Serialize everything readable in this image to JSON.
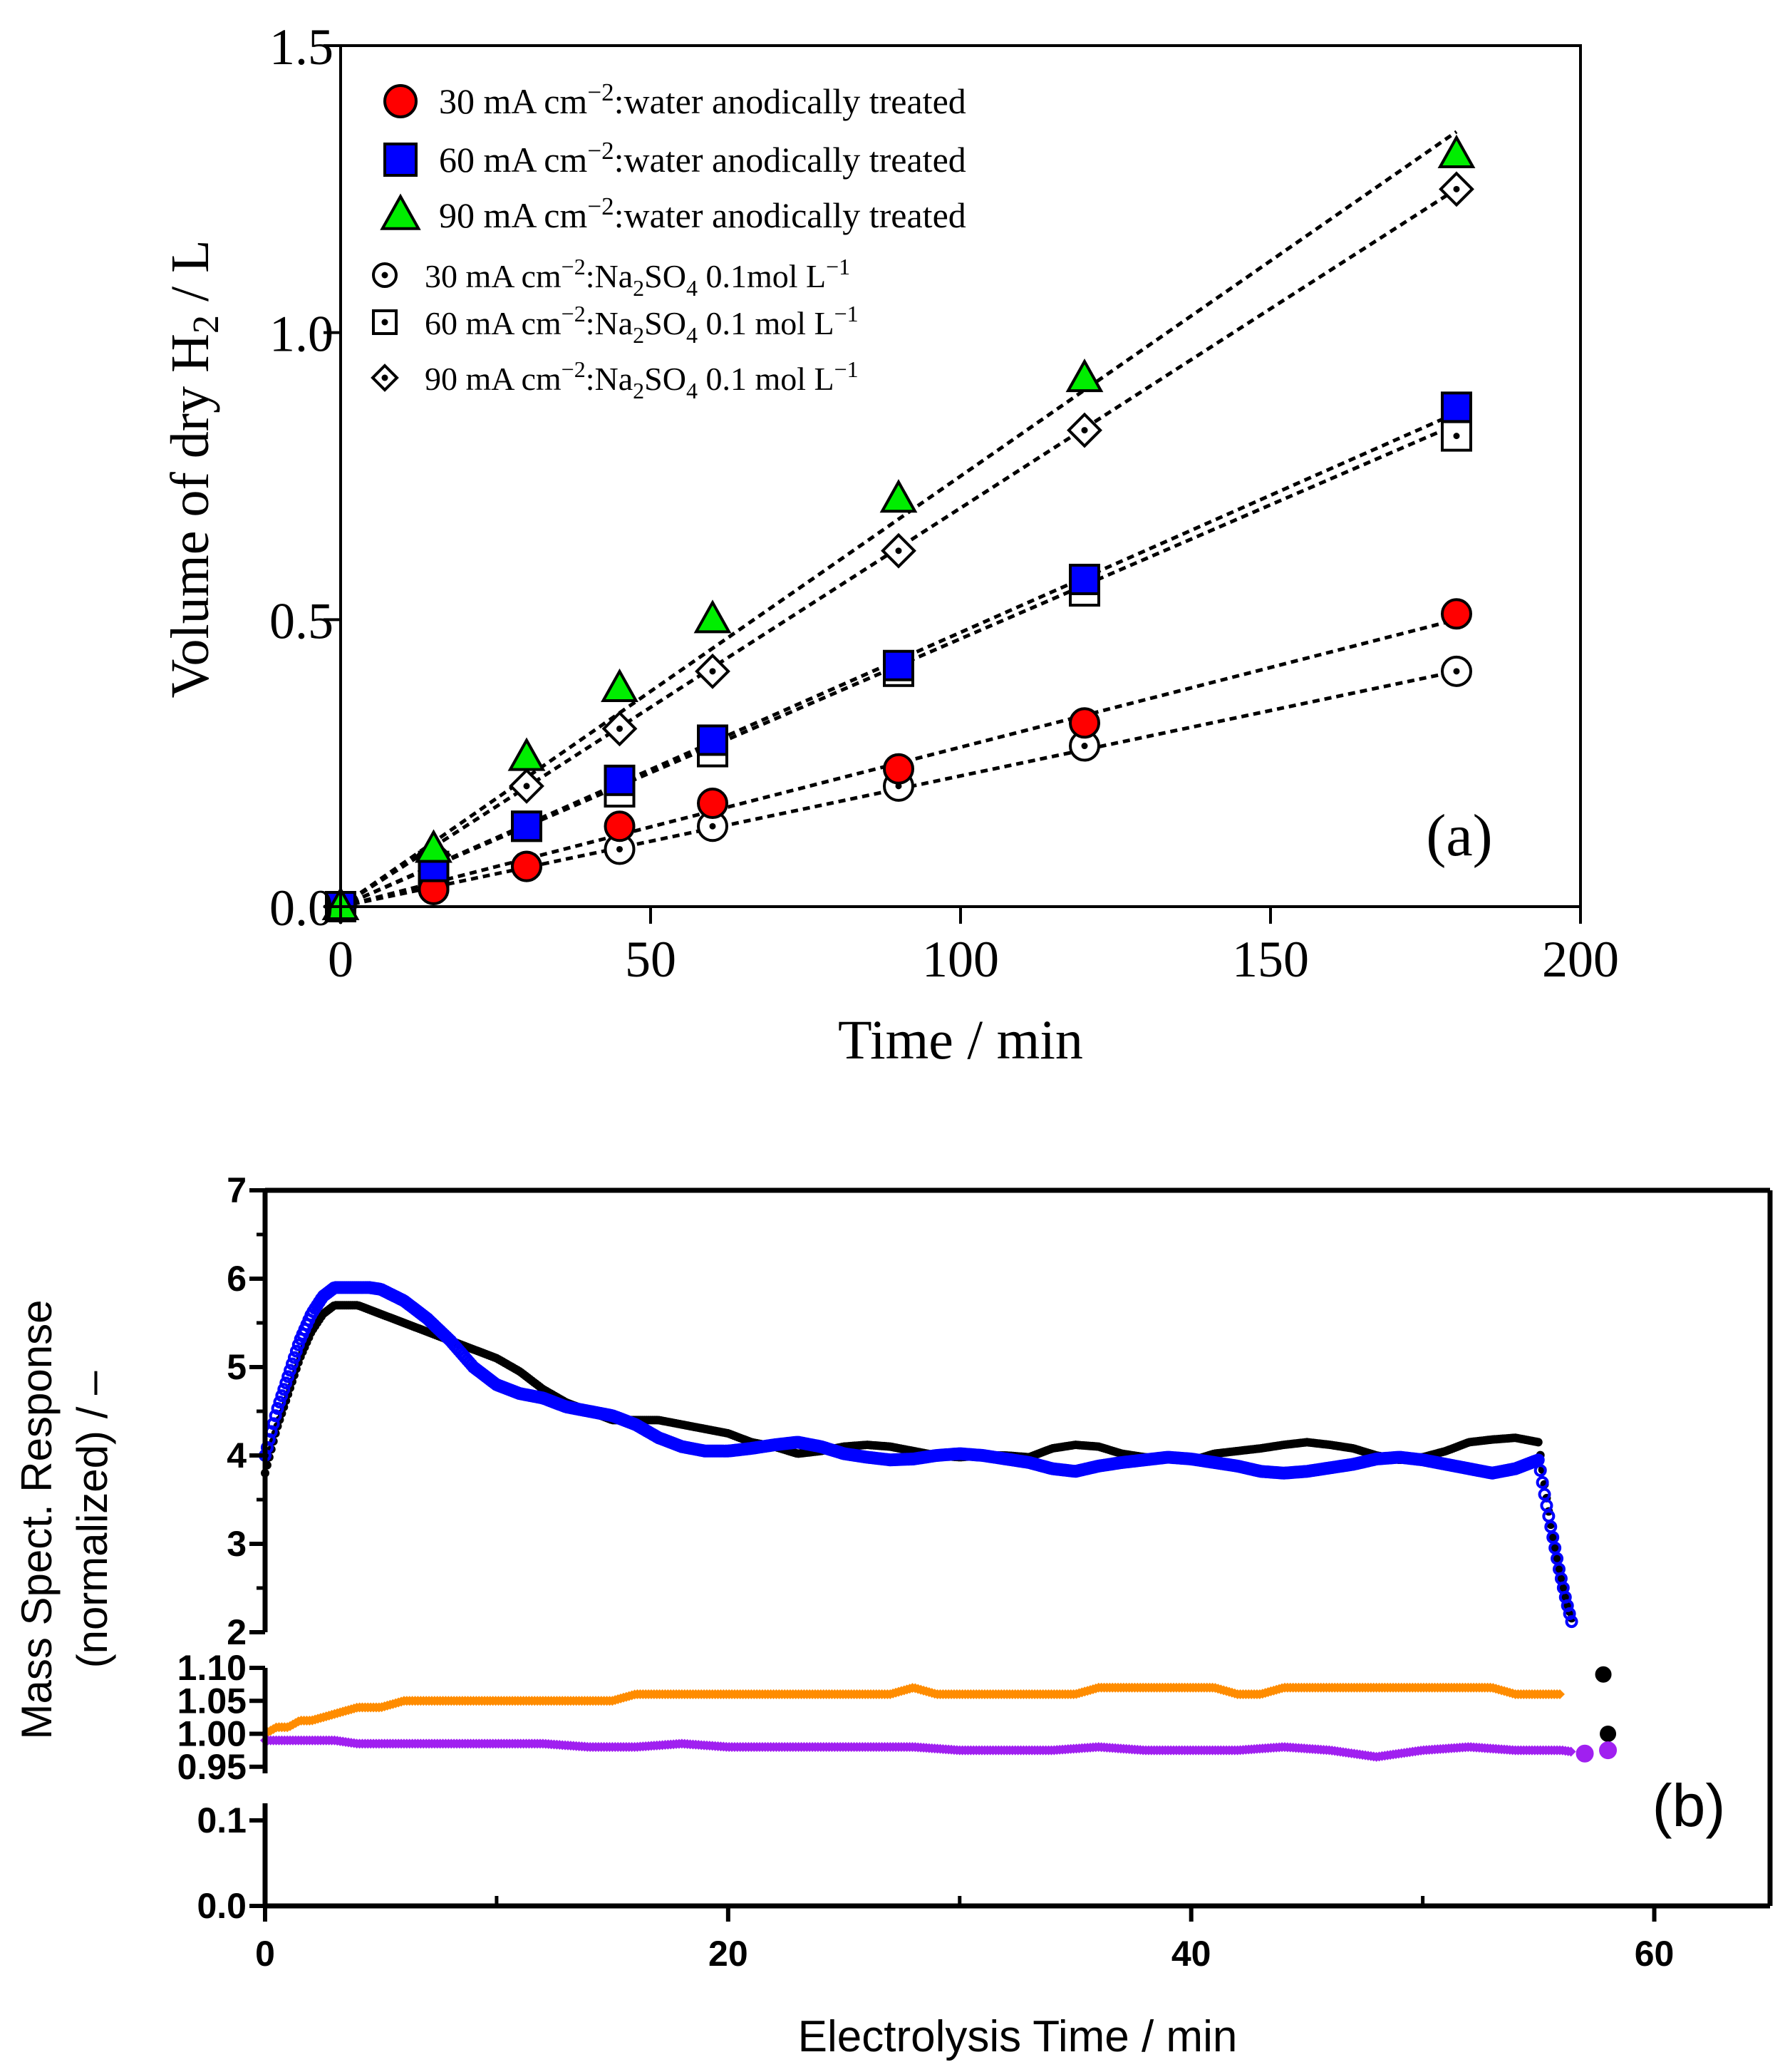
{
  "chart_data": [
    {
      "type": "scatter",
      "panel_label": "(a)",
      "xlabel": "Time / min",
      "ylabel": "Volume of dry H2 / L",
      "ylabel_parts": {
        "pre": "Volume of dry H",
        "sub": "2",
        "post": " / L"
      },
      "xlim": [
        0,
        200
      ],
      "ylim": [
        0,
        1.5
      ],
      "x_ticks": [
        0,
        50,
        100,
        150,
        200
      ],
      "x_tick_labels": [
        "0",
        "50",
        "100",
        "150",
        "200"
      ],
      "y_ticks": [
        0,
        0.5,
        1.0,
        1.5
      ],
      "y_tick_labels": [
        "0.0",
        "0.5",
        "1.0",
        "1.5"
      ],
      "grid": false,
      "legend_position": "top-left",
      "series": [
        {
          "name": "30 mA cm−2:water anodically treated",
          "legend_parts": [
            "30 mA cm",
            "−2",
            ":water anodically treated"
          ],
          "marker": "circle",
          "fill": "#ff0000",
          "x": [
            0,
            15,
            30,
            45,
            60,
            90,
            120,
            180
          ],
          "y": [
            0.0,
            0.03,
            0.07,
            0.14,
            0.18,
            0.24,
            0.32,
            0.51
          ],
          "fit": [
            0,
            0.0,
            180,
            0.5
          ]
        },
        {
          "name": "60 mA cm−2:water anodically treated",
          "legend_parts": [
            "60 mA cm",
            "−2",
            ":water anodically treated"
          ],
          "marker": "square",
          "fill": "#0000ff",
          "x": [
            0,
            15,
            30,
            45,
            60,
            90,
            120,
            180
          ],
          "y": [
            0.0,
            0.07,
            0.14,
            0.22,
            0.29,
            0.42,
            0.57,
            0.87
          ],
          "fit": [
            0,
            0.0,
            180,
            0.86
          ]
        },
        {
          "name": "90 mA cm−2:water anodically treated",
          "legend_parts": [
            "90 mA cm",
            "−2",
            ":water anodically treated"
          ],
          "marker": "triangle",
          "fill": "#00ee00",
          "x": [
            0,
            15,
            30,
            45,
            60,
            90,
            120,
            180
          ],
          "y": [
            0.0,
            0.1,
            0.26,
            0.38,
            0.5,
            0.71,
            0.92,
            1.31
          ],
          "fit": [
            0,
            0.0,
            180,
            1.35
          ]
        },
        {
          "name": "30 mA cm−2:Na2SO4 0.1mol L−1",
          "legend_parts": [
            "30 mA cm",
            "−2",
            ":Na",
            "2",
            "SO",
            "4",
            " 0.1mol L",
            "−1"
          ],
          "marker": "circle-open",
          "fill": "#ffffff",
          "x": [
            0,
            15,
            30,
            45,
            60,
            90,
            120,
            180
          ],
          "y": [
            0.0,
            0.03,
            0.07,
            0.1,
            0.14,
            0.21,
            0.28,
            0.41
          ],
          "fit": [
            0,
            0.0,
            180,
            0.41
          ]
        },
        {
          "name": "60 mA cm−2:Na2SO4 0.1 mol L−1",
          "legend_parts": [
            "60 mA cm",
            "−2",
            ":Na",
            "2",
            "SO",
            "4",
            " 0.1 mol L",
            "−1"
          ],
          "marker": "square-open",
          "fill": "#ffffff",
          "x": [
            0,
            15,
            30,
            45,
            60,
            90,
            120,
            180
          ],
          "y": [
            0.0,
            0.06,
            0.14,
            0.2,
            0.27,
            0.41,
            0.55,
            0.82
          ],
          "fit": [
            0,
            0.0,
            180,
            0.84
          ]
        },
        {
          "name": "90 mA cm−2:Na2SO4 0.1 mol L−1",
          "legend_parts": [
            "90 mA cm",
            "−2",
            ":Na",
            "2",
            "SO",
            "4",
            " 0.1 mol L",
            "−1"
          ],
          "marker": "diamond-open",
          "fill": "#ffffff",
          "x": [
            0,
            15,
            30,
            45,
            60,
            90,
            120,
            180
          ],
          "y": [
            0.0,
            0.09,
            0.21,
            0.31,
            0.41,
            0.62,
            0.83,
            1.25
          ],
          "fit": [
            0,
            0.0,
            180,
            1.25
          ]
        }
      ]
    },
    {
      "type": "scatter",
      "panel_label": "(b)",
      "xlabel": "Electrolysis Time / min",
      "ylabel_line1": "Mass Spect. Response",
      "ylabel_line2": "(normalized) / –",
      "xlim": [
        0,
        65
      ],
      "x_ticks": [
        0,
        20,
        40,
        60
      ],
      "x_tick_labels": [
        "0",
        "20",
        "40",
        "60"
      ],
      "x_minor_ticks": [
        10,
        30,
        50
      ],
      "y_axis_broken": true,
      "y_segments": [
        {
          "range": [
            2,
            7
          ],
          "ticks": [
            2,
            3,
            4,
            5,
            6,
            7
          ],
          "tick_labels": [
            "2",
            "3",
            "4",
            "5",
            "6",
            "7"
          ]
        },
        {
          "range": [
            0.94,
            1.1
          ],
          "ticks": [
            0.95,
            1.0,
            1.05,
            1.1
          ],
          "tick_labels": [
            "0.95",
            "1.00",
            "1.05",
            "1.10"
          ]
        },
        {
          "range": [
            0,
            0.12
          ],
          "ticks": [
            0.0,
            0.1
          ],
          "tick_labels": [
            "0.0",
            "0.1"
          ]
        }
      ],
      "grid": false,
      "series": [
        {
          "name": "black trace",
          "color": "#000000",
          "x": [
            0,
            0.5,
            1,
            1.5,
            2,
            2.5,
            3,
            3.5,
            4,
            5,
            6,
            7,
            8,
            9,
            10,
            11,
            12,
            13,
            14,
            15,
            16,
            17,
            18,
            19,
            20,
            21,
            22,
            23,
            24,
            25,
            26,
            27,
            28,
            29,
            30,
            31,
            32,
            33,
            34,
            35,
            36,
            37,
            38,
            39,
            40,
            41,
            42,
            43,
            44,
            45,
            46,
            47,
            48,
            49,
            50,
            51,
            52,
            53,
            54,
            55,
            55.3,
            55.6,
            55.9,
            56.2,
            56.5,
            57.8,
            58.0
          ],
          "y": [
            3.8,
            4.3,
            4.7,
            5.1,
            5.4,
            5.6,
            5.7,
            5.7,
            5.7,
            5.6,
            5.5,
            5.4,
            5.3,
            5.2,
            5.1,
            4.95,
            4.75,
            4.6,
            4.5,
            4.4,
            4.4,
            4.4,
            4.35,
            4.3,
            4.25,
            4.15,
            4.1,
            4.02,
            4.05,
            4.1,
            4.12,
            4.1,
            4.05,
            4.0,
            3.98,
            4.0,
            4.0,
            3.98,
            4.08,
            4.12,
            4.1,
            4.02,
            3.98,
            3.96,
            3.94,
            4.02,
            4.05,
            4.08,
            4.12,
            4.15,
            4.12,
            4.08,
            4.0,
            3.95,
            3.98,
            4.05,
            4.15,
            4.18,
            4.2,
            4.15,
            3.6,
            3.1,
            2.7,
            2.35,
            2.1,
            1.09,
            1.0
          ]
        },
        {
          "name": "blue trace",
          "color": "#0000ff",
          "x": [
            0,
            0.5,
            1,
            1.5,
            2,
            2.5,
            3,
            3.5,
            4,
            4.5,
            5,
            6,
            7,
            8,
            9,
            10,
            11,
            12,
            13,
            14,
            15,
            16,
            17,
            18,
            19,
            20,
            21,
            22,
            23,
            24,
            25,
            26,
            27,
            28,
            29,
            30,
            31,
            32,
            33,
            34,
            35,
            36,
            37,
            38,
            39,
            40,
            41,
            42,
            43,
            44,
            45,
            46,
            47,
            48,
            49,
            50,
            51,
            52,
            53,
            54,
            55,
            55.3,
            55.6,
            55.9,
            56.2,
            56.5
          ],
          "y": [
            4.0,
            4.5,
            4.9,
            5.3,
            5.6,
            5.8,
            5.9,
            5.9,
            5.9,
            5.9,
            5.88,
            5.75,
            5.55,
            5.3,
            5.0,
            4.8,
            4.7,
            4.65,
            4.55,
            4.5,
            4.45,
            4.35,
            4.2,
            4.1,
            4.05,
            4.05,
            4.08,
            4.12,
            4.15,
            4.1,
            4.02,
            3.98,
            3.95,
            3.96,
            4.0,
            4.02,
            4.0,
            3.96,
            3.92,
            3.85,
            3.82,
            3.88,
            3.92,
            3.95,
            3.98,
            3.96,
            3.92,
            3.88,
            3.82,
            3.8,
            3.82,
            3.86,
            3.9,
            3.96,
            3.98,
            3.95,
            3.9,
            3.85,
            3.8,
            3.85,
            3.95,
            3.5,
            3.1,
            2.7,
            2.35,
            2.05
          ]
        },
        {
          "name": "orange trace",
          "color": "#ff8c00",
          "x": [
            0,
            0.5,
            1,
            1.5,
            2,
            3,
            4,
            5,
            6,
            7,
            8,
            9,
            10,
            12,
            14,
            15,
            16,
            17,
            18,
            19,
            20,
            22,
            23,
            24,
            26,
            27,
            28,
            29,
            30,
            32,
            34,
            35,
            36,
            38,
            40,
            41,
            42,
            43,
            44,
            45,
            46,
            48,
            50,
            52,
            53,
            54,
            55,
            56
          ],
          "y": [
            1.0,
            1.01,
            1.01,
            1.02,
            1.02,
            1.03,
            1.04,
            1.04,
            1.05,
            1.05,
            1.05,
            1.05,
            1.05,
            1.05,
            1.05,
            1.05,
            1.06,
            1.06,
            1.06,
            1.06,
            1.06,
            1.06,
            1.06,
            1.06,
            1.06,
            1.06,
            1.07,
            1.06,
            1.06,
            1.06,
            1.06,
            1.06,
            1.07,
            1.07,
            1.07,
            1.07,
            1.06,
            1.06,
            1.07,
            1.07,
            1.07,
            1.07,
            1.07,
            1.07,
            1.07,
            1.06,
            1.06,
            1.06
          ]
        },
        {
          "name": "purple trace",
          "color": "#a020f0",
          "x": [
            0,
            1,
            2,
            3,
            4,
            5,
            6,
            8,
            10,
            12,
            14,
            16,
            18,
            20,
            22,
            24,
            26,
            28,
            30,
            32,
            34,
            36,
            38,
            40,
            42,
            44,
            46,
            47,
            48,
            49,
            50,
            52,
            54,
            56,
            57,
            58
          ],
          "y": [
            0.99,
            0.99,
            0.99,
            0.99,
            0.985,
            0.985,
            0.985,
            0.985,
            0.985,
            0.985,
            0.98,
            0.98,
            0.985,
            0.98,
            0.98,
            0.98,
            0.98,
            0.98,
            0.975,
            0.975,
            0.975,
            0.98,
            0.975,
            0.975,
            0.975,
            0.98,
            0.975,
            0.97,
            0.965,
            0.97,
            0.975,
            0.98,
            0.975,
            0.975,
            0.97,
            0.975
          ]
        }
      ]
    }
  ]
}
